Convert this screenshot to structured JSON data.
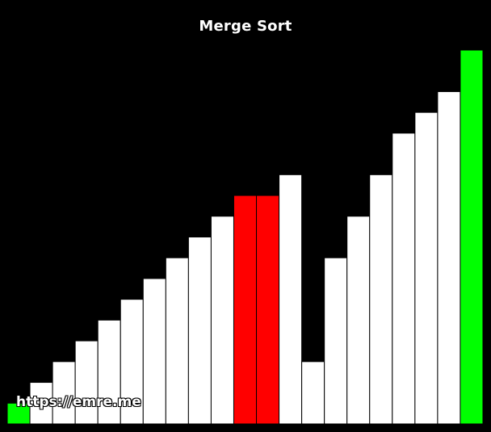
{
  "title": "Merge Sort",
  "watermark": "https://emre.me",
  "colors": {
    "background": "#000000",
    "default": "#ffffff",
    "comparing": "#ff0000",
    "sorted": "#00ff00",
    "outline": "#000000"
  },
  "chart_data": {
    "type": "bar",
    "max_value": 18,
    "values": [
      1,
      2,
      3,
      4,
      5,
      6,
      7,
      8,
      9,
      10,
      11,
      11,
      12,
      3,
      8,
      10,
      12,
      14,
      15,
      16,
      18
    ],
    "states": [
      "sorted",
      "default",
      "default",
      "default",
      "default",
      "default",
      "default",
      "default",
      "default",
      "default",
      "comparing",
      "comparing",
      "default",
      "default",
      "default",
      "default",
      "default",
      "default",
      "default",
      "default",
      "sorted"
    ]
  }
}
